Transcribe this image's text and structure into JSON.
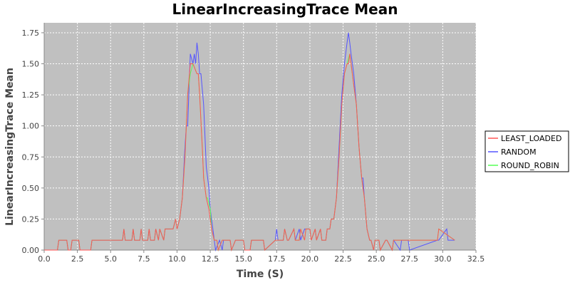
{
  "chart_data": {
    "type": "line",
    "title": "LinearIncreasingTrace Mean",
    "xlabel": "Time (S)",
    "ylabel": "LinearIncreasingTrace Mean",
    "xlim": [
      0.0,
      32.5
    ],
    "ylim": [
      0.0,
      1.83
    ],
    "xticks": [
      "0.0",
      "2.5",
      "5.0",
      "7.5",
      "10.0",
      "12.5",
      "15.0",
      "17.5",
      "20.0",
      "22.5",
      "25.0",
      "27.5",
      "30.0",
      "32.5"
    ],
    "yticks": [
      "0.00",
      "0.25",
      "0.50",
      "0.75",
      "1.00",
      "1.25",
      "1.50",
      "1.75"
    ],
    "grid": true,
    "legend_position": "right",
    "plot_background": "#c0c0c0",
    "series": [
      {
        "name": "LEAST_LOADED",
        "color": "#ff5555",
        "x": [
          0.0,
          1.0,
          1.1,
          1.7,
          1.8,
          2.0,
          2.1,
          2.6,
          2.7,
          3.5,
          3.6,
          4.5,
          4.6,
          5.9,
          6.0,
          6.1,
          6.6,
          6.7,
          6.8,
          7.2,
          7.3,
          7.4,
          7.8,
          7.9,
          8.0,
          8.3,
          8.4,
          8.6,
          8.7,
          9.0,
          9.1,
          9.3,
          9.5,
          9.7,
          9.9,
          10.0,
          10.2,
          10.4,
          10.6,
          10.8,
          11.0,
          11.2,
          11.5,
          11.6,
          11.7,
          11.9,
          12.0,
          12.2,
          12.4,
          12.6,
          12.8,
          13.0,
          13.1,
          13.4,
          13.5,
          14.0,
          14.1,
          14.4,
          14.5,
          15.0,
          15.1,
          15.5,
          15.6,
          16.5,
          16.6,
          17.4,
          17.5,
          18.0,
          18.1,
          18.3,
          18.4,
          18.8,
          18.9,
          19.2,
          19.3,
          19.6,
          19.7,
          20.0,
          20.1,
          20.4,
          20.5,
          20.8,
          20.9,
          21.2,
          21.3,
          21.5,
          21.6,
          21.8,
          22.0,
          22.2,
          22.4,
          22.6,
          22.8,
          22.9,
          23.0,
          23.1,
          23.3,
          23.5,
          23.7,
          23.9,
          24.1,
          24.3,
          24.5,
          24.6,
          24.8,
          24.9,
          25.2,
          25.3,
          25.7,
          25.8,
          26.2,
          26.3,
          27.4,
          27.5,
          29.6,
          29.7,
          30.9
        ],
        "values": [
          0.0,
          0.0,
          0.08,
          0.08,
          0.0,
          0.0,
          0.08,
          0.08,
          0.0,
          0.0,
          0.08,
          0.08,
          0.08,
          0.08,
          0.17,
          0.08,
          0.08,
          0.17,
          0.08,
          0.08,
          0.17,
          0.08,
          0.08,
          0.17,
          0.08,
          0.08,
          0.17,
          0.08,
          0.17,
          0.08,
          0.17,
          0.17,
          0.17,
          0.17,
          0.25,
          0.17,
          0.25,
          0.42,
          0.75,
          1.25,
          1.5,
          1.5,
          1.42,
          1.42,
          1.25,
          0.83,
          0.58,
          0.42,
          0.33,
          0.17,
          0.08,
          0.08,
          0.0,
          0.08,
          0.08,
          0.08,
          0.0,
          0.08,
          0.08,
          0.08,
          0.0,
          0.0,
          0.08,
          0.08,
          0.0,
          0.08,
          0.08,
          0.08,
          0.17,
          0.08,
          0.08,
          0.17,
          0.08,
          0.08,
          0.17,
          0.08,
          0.17,
          0.17,
          0.08,
          0.17,
          0.08,
          0.17,
          0.08,
          0.08,
          0.17,
          0.17,
          0.25,
          0.25,
          0.42,
          0.75,
          1.17,
          1.42,
          1.5,
          1.5,
          1.58,
          1.5,
          1.33,
          1.17,
          0.83,
          0.58,
          0.42,
          0.17,
          0.08,
          0.08,
          0.0,
          0.08,
          0.08,
          0.0,
          0.08,
          0.08,
          0.0,
          0.08,
          0.08,
          0.08,
          0.08,
          0.17,
          0.08
        ]
      },
      {
        "name": "RANDOM",
        "color": "#5555ff",
        "x": [
          0.0,
          1.0,
          1.1,
          1.7,
          1.8,
          2.0,
          2.1,
          2.6,
          2.7,
          3.5,
          3.6,
          4.5,
          4.6,
          5.9,
          6.0,
          6.1,
          6.6,
          6.7,
          6.8,
          7.2,
          7.3,
          7.4,
          7.8,
          7.9,
          8.0,
          8.3,
          8.4,
          8.6,
          8.7,
          9.0,
          9.1,
          9.3,
          9.5,
          9.7,
          9.9,
          10.0,
          10.2,
          10.4,
          10.6,
          10.7,
          10.8,
          11.0,
          11.2,
          11.3,
          11.4,
          11.5,
          11.6,
          11.7,
          11.8,
          12.0,
          12.2,
          12.4,
          12.5,
          12.7,
          12.9,
          13.2,
          13.4,
          13.5,
          14.0,
          14.1,
          14.4,
          14.5,
          15.0,
          15.1,
          15.5,
          15.6,
          16.5,
          16.6,
          17.4,
          17.5,
          17.6,
          18.0,
          18.1,
          18.3,
          18.4,
          18.8,
          18.9,
          19.2,
          19.3,
          19.6,
          19.7,
          20.0,
          20.1,
          20.4,
          20.5,
          20.8,
          20.9,
          21.2,
          21.3,
          21.5,
          21.6,
          21.8,
          22.0,
          22.2,
          22.4,
          22.6,
          22.8,
          22.9,
          23.0,
          23.1,
          23.3,
          23.5,
          23.7,
          23.9,
          24.0,
          24.1,
          24.3,
          24.5,
          24.6,
          24.8,
          24.9,
          25.2,
          25.3,
          25.7,
          25.8,
          26.2,
          26.3,
          26.8,
          26.9,
          27.4,
          27.5,
          29.6,
          29.7,
          30.3,
          30.4,
          30.9
        ],
        "values": [
          0.0,
          0.0,
          0.08,
          0.08,
          0.0,
          0.0,
          0.08,
          0.08,
          0.0,
          0.0,
          0.08,
          0.08,
          0.08,
          0.08,
          0.17,
          0.08,
          0.08,
          0.17,
          0.08,
          0.08,
          0.17,
          0.08,
          0.08,
          0.17,
          0.08,
          0.08,
          0.17,
          0.08,
          0.17,
          0.08,
          0.17,
          0.17,
          0.17,
          0.17,
          0.25,
          0.17,
          0.25,
          0.42,
          0.83,
          1.0,
          1.0,
          1.58,
          1.5,
          1.58,
          1.5,
          1.67,
          1.58,
          1.42,
          1.42,
          1.17,
          0.67,
          0.5,
          0.33,
          0.17,
          0.0,
          0.08,
          0.0,
          0.08,
          0.08,
          0.0,
          0.08,
          0.08,
          0.08,
          0.0,
          0.0,
          0.08,
          0.08,
          0.0,
          0.08,
          0.17,
          0.08,
          0.08,
          0.17,
          0.08,
          0.08,
          0.17,
          0.08,
          0.17,
          0.08,
          0.17,
          0.17,
          0.17,
          0.08,
          0.17,
          0.08,
          0.17,
          0.08,
          0.08,
          0.17,
          0.17,
          0.25,
          0.25,
          0.42,
          0.83,
          1.25,
          1.5,
          1.67,
          1.75,
          1.67,
          1.58,
          1.42,
          1.17,
          0.83,
          0.58,
          0.58,
          0.42,
          0.17,
          0.08,
          0.08,
          0.0,
          0.08,
          0.08,
          0.0,
          0.08,
          0.08,
          0.0,
          0.08,
          0.0,
          0.08,
          0.08,
          0.0,
          0.08,
          0.08,
          0.17,
          0.08,
          0.08
        ]
      },
      {
        "name": "ROUND_ROBIN",
        "color": "#55ff55",
        "x": [
          0.0,
          1.0,
          1.1,
          1.7,
          1.8,
          2.0,
          2.1,
          2.6,
          2.7,
          3.5,
          3.6,
          4.5,
          4.6,
          5.9,
          6.0,
          6.1,
          6.6,
          6.7,
          6.8,
          7.2,
          7.3,
          7.4,
          7.8,
          7.9,
          8.0,
          8.3,
          8.4,
          8.6,
          8.7,
          9.0,
          9.1,
          9.3,
          9.5,
          9.7,
          9.9,
          10.0,
          10.2,
          10.4,
          10.6,
          10.8,
          11.0,
          11.2,
          11.5,
          11.6,
          11.7,
          11.9,
          12.0,
          12.2,
          12.3,
          12.5,
          12.6,
          12.8,
          13.0,
          13.1,
          13.4,
          13.5,
          14.0,
          14.1,
          14.4,
          14.5,
          15.0,
          15.1,
          15.5,
          15.6,
          16.5,
          16.6,
          17.4,
          17.5,
          18.0,
          18.1,
          18.3,
          18.4,
          18.8,
          18.9,
          19.2,
          19.3,
          19.6,
          19.7,
          20.0,
          20.1,
          20.4,
          20.5,
          20.8,
          20.9,
          21.2,
          21.3,
          21.5,
          21.6,
          21.8,
          22.0,
          22.2,
          22.4,
          22.6,
          22.8,
          23.0,
          23.1,
          23.3,
          23.5,
          23.7,
          23.9,
          24.1,
          24.3,
          24.5,
          24.6,
          24.8,
          24.9,
          25.2,
          25.3,
          25.7,
          25.8,
          26.2,
          26.3,
          27.4,
          27.5,
          29.6,
          29.7,
          30.9
        ],
        "values": [
          0.0,
          0.0,
          0.08,
          0.08,
          0.0,
          0.0,
          0.08,
          0.08,
          0.0,
          0.0,
          0.08,
          0.08,
          0.08,
          0.08,
          0.17,
          0.08,
          0.08,
          0.17,
          0.08,
          0.08,
          0.17,
          0.08,
          0.08,
          0.17,
          0.08,
          0.08,
          0.17,
          0.08,
          0.17,
          0.08,
          0.17,
          0.17,
          0.17,
          0.17,
          0.25,
          0.17,
          0.25,
          0.42,
          0.75,
          1.25,
          1.42,
          1.5,
          1.42,
          1.42,
          1.25,
          0.83,
          0.58,
          0.42,
          0.42,
          0.33,
          0.17,
          0.08,
          0.08,
          0.0,
          0.08,
          0.08,
          0.08,
          0.0,
          0.08,
          0.08,
          0.08,
          0.0,
          0.0,
          0.08,
          0.08,
          0.0,
          0.08,
          0.08,
          0.08,
          0.17,
          0.08,
          0.08,
          0.17,
          0.08,
          0.08,
          0.17,
          0.08,
          0.17,
          0.17,
          0.08,
          0.17,
          0.08,
          0.17,
          0.08,
          0.08,
          0.17,
          0.17,
          0.25,
          0.25,
          0.42,
          0.75,
          1.17,
          1.42,
          1.5,
          1.58,
          1.5,
          1.33,
          1.17,
          0.83,
          0.58,
          0.42,
          0.17,
          0.08,
          0.08,
          0.0,
          0.08,
          0.08,
          0.0,
          0.08,
          0.08,
          0.0,
          0.08,
          0.08,
          0.08,
          0.08,
          0.17,
          0.08
        ]
      }
    ]
  }
}
